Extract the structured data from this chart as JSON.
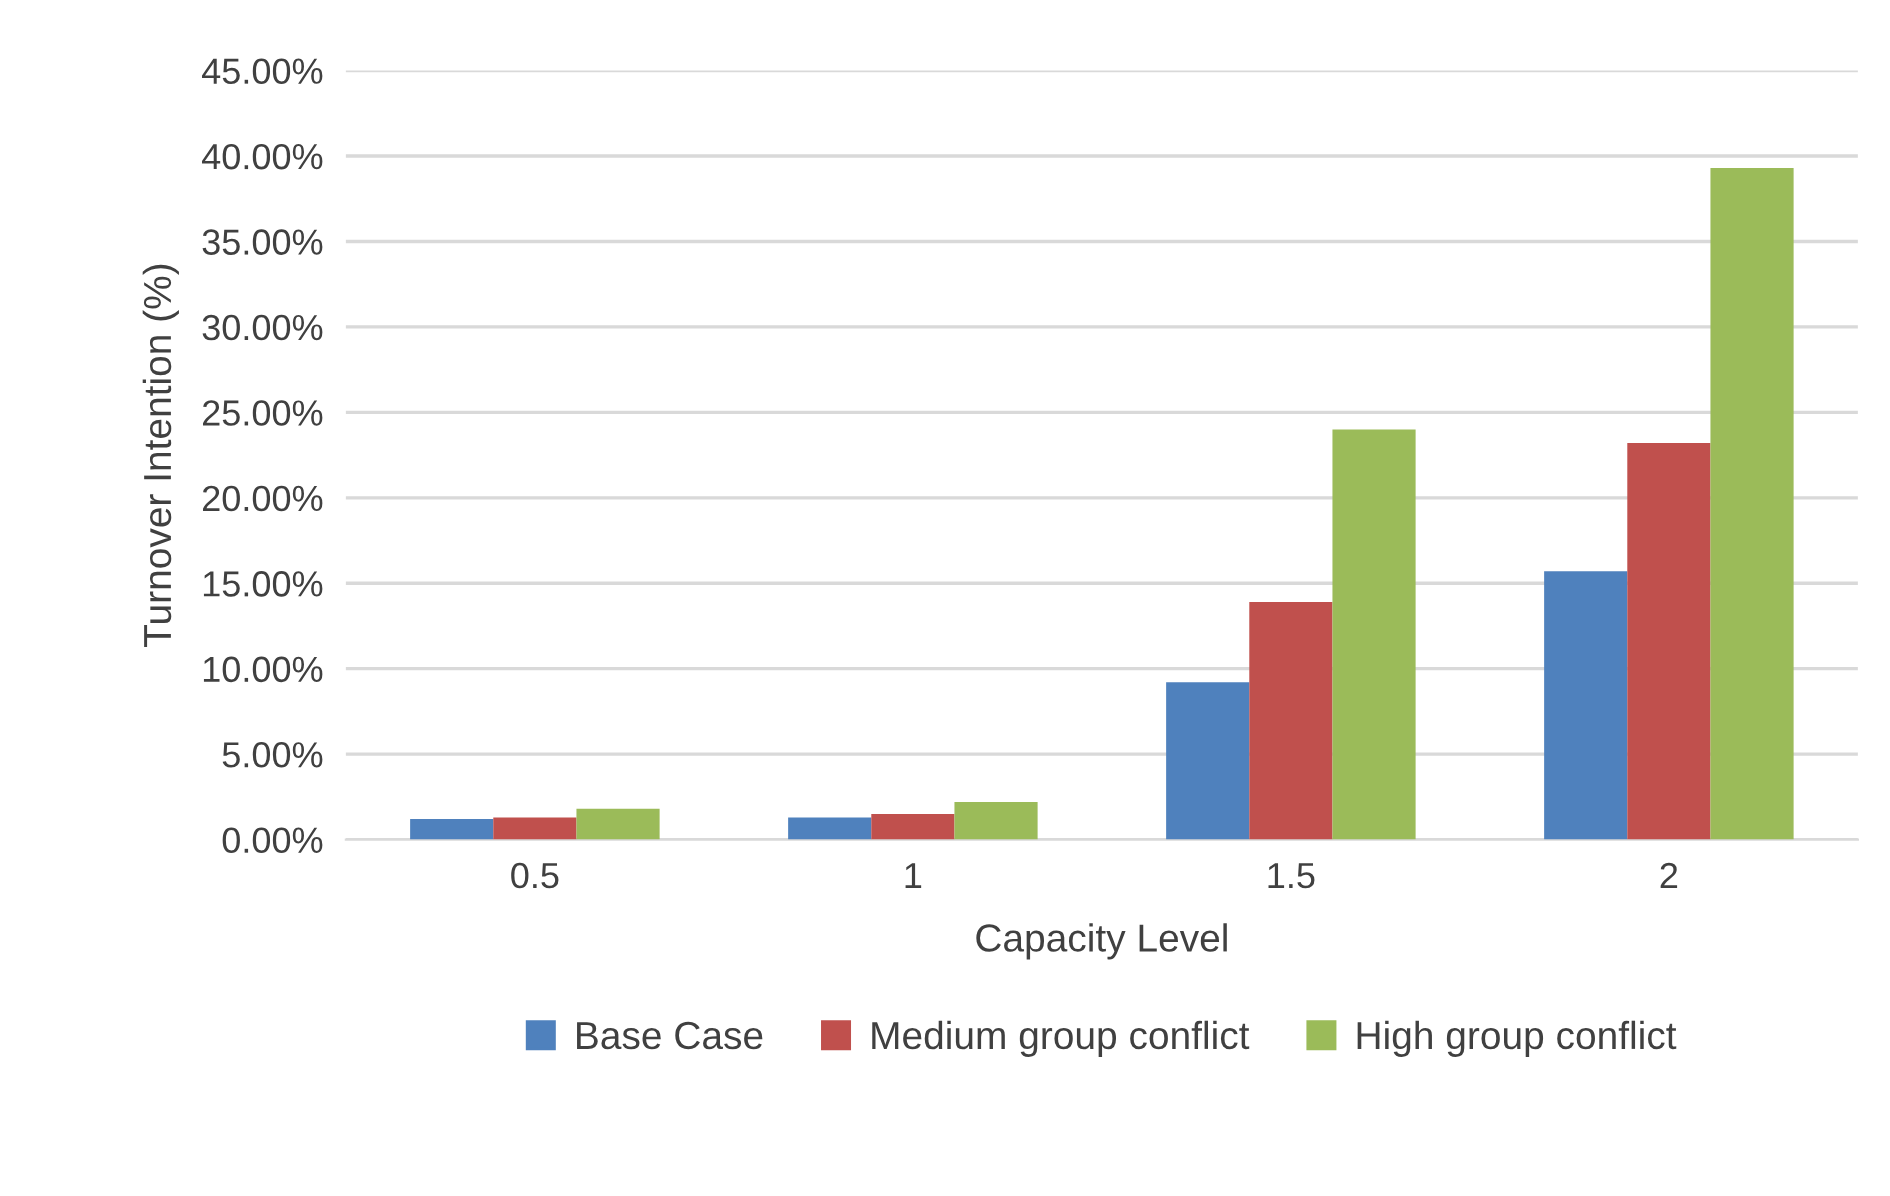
{
  "chart_data": {
    "type": "bar",
    "xlabel": "Capacity Level",
    "ylabel": "Turnover Intention (%)",
    "categories": [
      "0.5",
      "1",
      "1.5",
      "2"
    ],
    "series": [
      {
        "name": "Base Case",
        "color": "#4f81bd",
        "values": [
          1.2,
          1.3,
          9.2,
          15.7
        ]
      },
      {
        "name": "Medium group conflict",
        "color": "#c0504d",
        "values": [
          1.3,
          1.5,
          13.9,
          23.2
        ]
      },
      {
        "name": "High group conflict",
        "color": "#9bbb59",
        "values": [
          1.8,
          2.2,
          24.0,
          39.3
        ]
      }
    ],
    "ylim": [
      0,
      45
    ],
    "yticks": [
      {
        "value": 0,
        "label": "0.00%"
      },
      {
        "value": 5,
        "label": "5.00%"
      },
      {
        "value": 10,
        "label": "10.00%"
      },
      {
        "value": 15,
        "label": "15.00%"
      },
      {
        "value": 20,
        "label": "20.00%"
      },
      {
        "value": 25,
        "label": "25.00%"
      },
      {
        "value": 30,
        "label": "30.00%"
      },
      {
        "value": 35,
        "label": "35.00%"
      },
      {
        "value": 40,
        "label": "40.00%"
      },
      {
        "value": 45,
        "label": "45.00%"
      }
    ],
    "grid": "y",
    "legend": "bottom"
  }
}
